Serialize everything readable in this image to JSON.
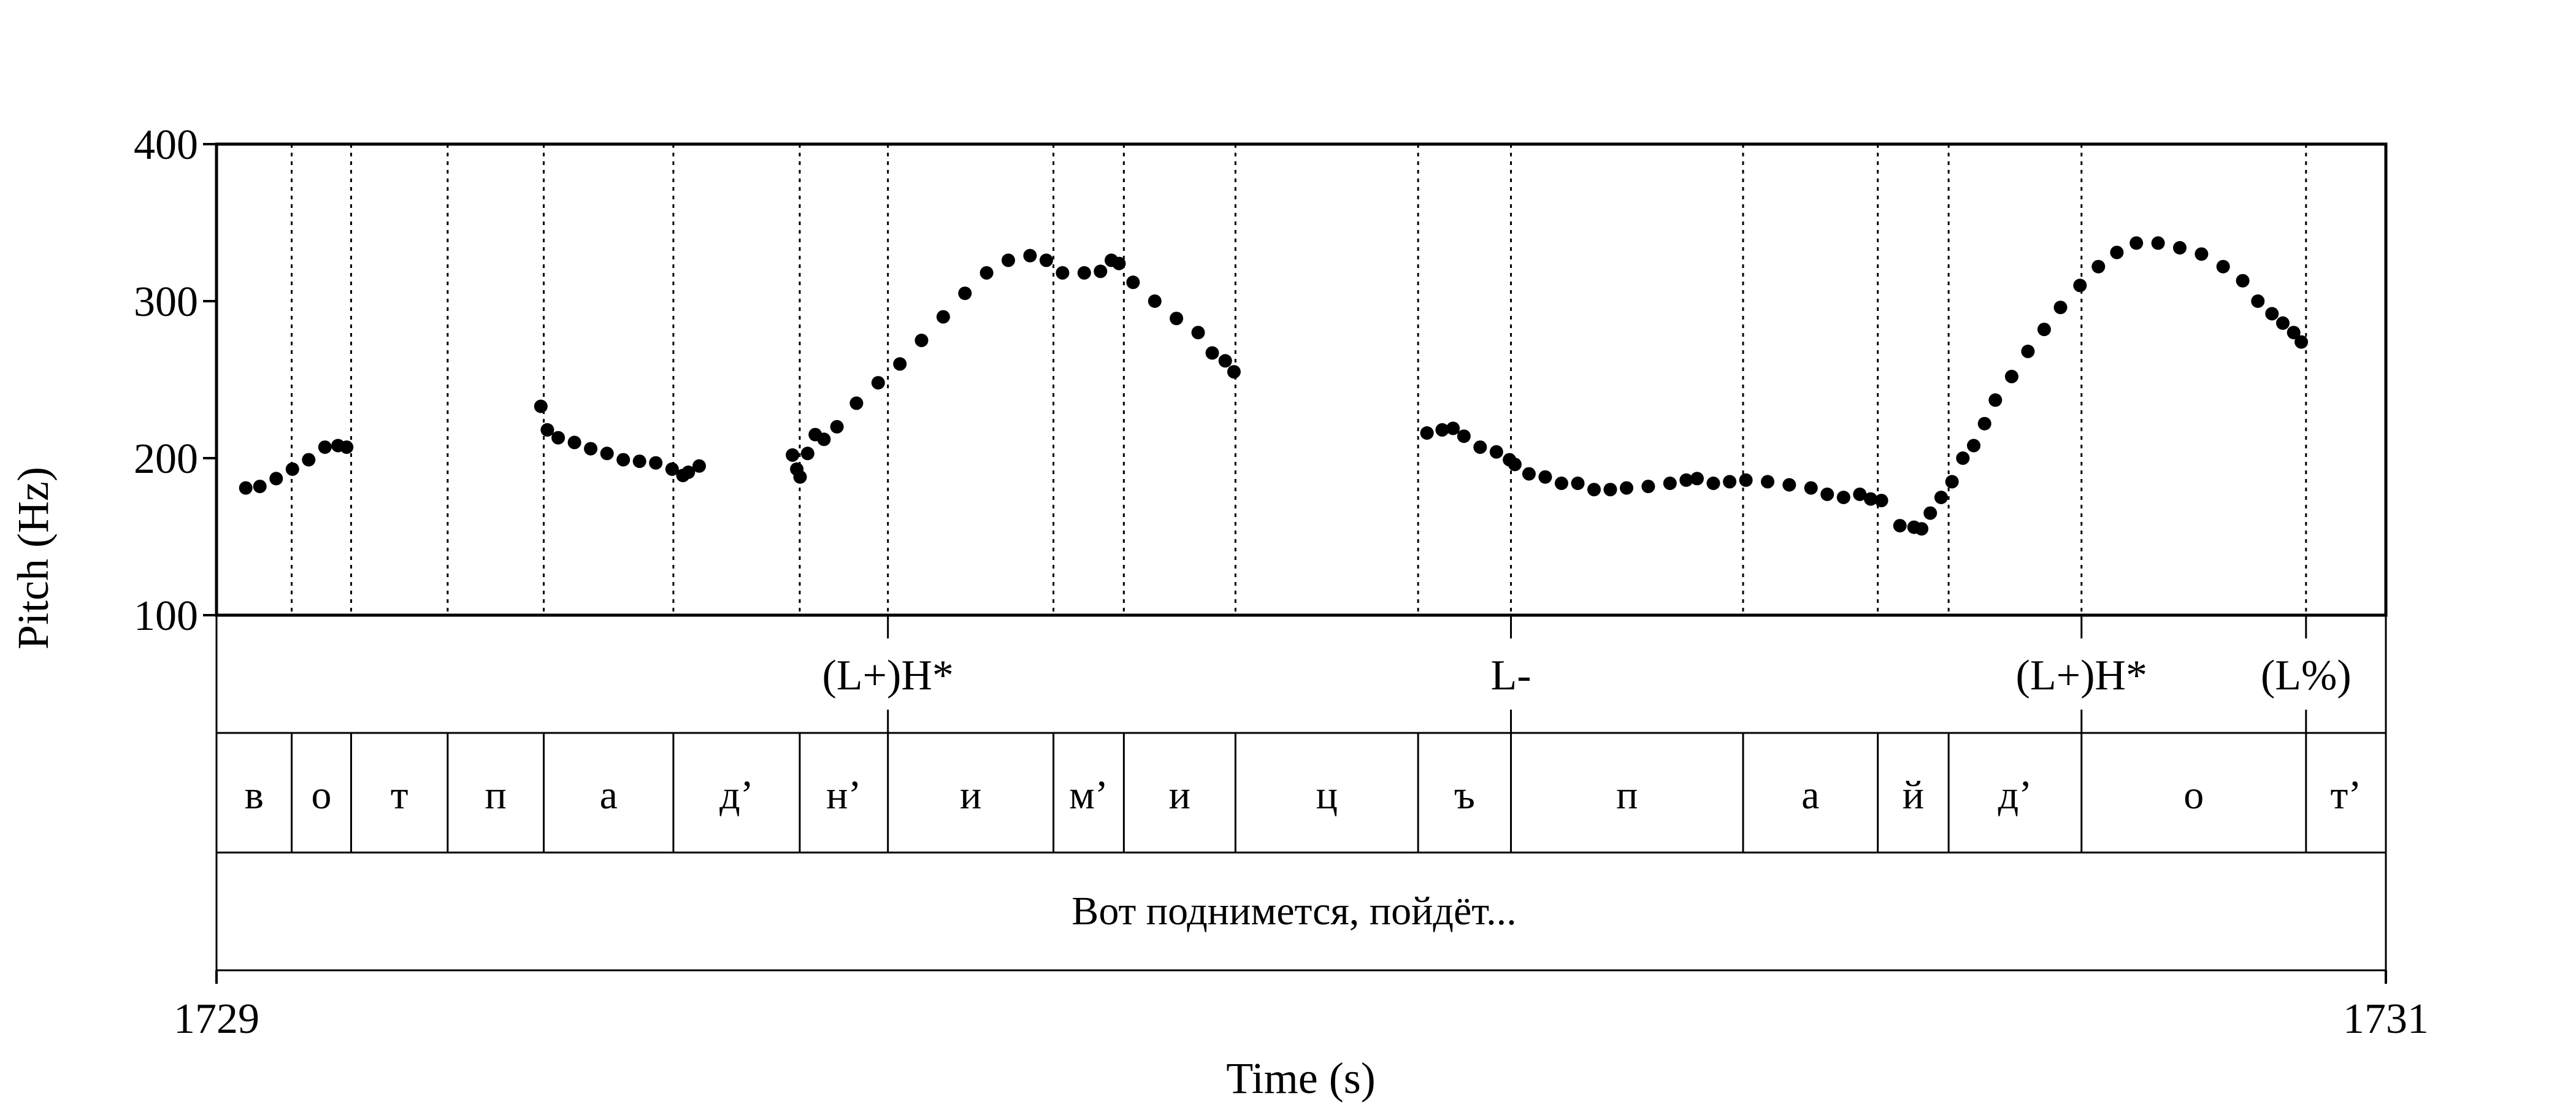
{
  "chart_data": {
    "type": "scatter",
    "title": "",
    "xlabel": "Time (s)",
    "ylabel": "Pitch (Hz)",
    "xlim": [
      1729,
      1731
    ],
    "ylim": [
      100,
      400
    ],
    "x_tick_labels": [
      "1729",
      "1731"
    ],
    "y_tick_labels": [
      "100",
      "200",
      "300",
      "400"
    ],
    "grid": false,
    "legend": "none",
    "point_color": "#000000",
    "boundaries": [
      1729.0693,
      1729.1241,
      1729.2131,
      1729.3017,
      1729.4212,
      1729.5377,
      1729.619,
      1729.7716,
      1729.8365,
      1729.9394,
      1730.1078,
      1730.1934,
      1730.4074,
      1730.5316,
      1730.5969,
      1730.7194,
      1730.9264
    ],
    "tones": [
      {
        "label": "(L+)H*",
        "x": 1729.619
      },
      {
        "label": "L-",
        "x": 1730.1934
      },
      {
        "label": "(L+)H*",
        "x": 1730.7194
      },
      {
        "label": "(L%)",
        "x": 1730.9264
      }
    ],
    "segments": [
      {
        "label": "в",
        "start": 1729.0,
        "end": 1729.0693
      },
      {
        "label": "о",
        "start": 1729.0693,
        "end": 1729.1241
      },
      {
        "label": "т",
        "start": 1729.1241,
        "end": 1729.2131
      },
      {
        "label": "п",
        "start": 1729.2131,
        "end": 1729.3017
      },
      {
        "label": "а",
        "start": 1729.3017,
        "end": 1729.4212
      },
      {
        "label": "д’",
        "start": 1729.4212,
        "end": 1729.5377
      },
      {
        "label": "н’",
        "start": 1729.5377,
        "end": 1729.619
      },
      {
        "label": "и",
        "start": 1729.619,
        "end": 1729.7716
      },
      {
        "label": "м’",
        "start": 1729.7716,
        "end": 1729.8365
      },
      {
        "label": "и",
        "start": 1729.8365,
        "end": 1729.9394
      },
      {
        "label": "ц",
        "start": 1729.9394,
        "end": 1730.1078
      },
      {
        "label": "ъ",
        "start": 1730.1078,
        "end": 1730.1934
      },
      {
        "label": "п",
        "start": 1730.1934,
        "end": 1730.4074
      },
      {
        "label": "а",
        "start": 1730.4074,
        "end": 1730.5316
      },
      {
        "label": "й",
        "start": 1730.5316,
        "end": 1730.5969
      },
      {
        "label": "д’",
        "start": 1730.5969,
        "end": 1730.7194
      },
      {
        "label": "о",
        "start": 1730.7194,
        "end": 1730.9264
      },
      {
        "label": "т’",
        "start": 1730.9264,
        "end": 1731.0
      }
    ],
    "sentence": "Вот поднимется, пойдёт...",
    "series": [
      {
        "points": [
          [
            1729.027,
            181
          ],
          [
            1729.04,
            182
          ],
          [
            1729.055,
            187
          ],
          [
            1729.07,
            193
          ],
          [
            1729.085,
            199
          ],
          [
            1729.1,
            207
          ],
          [
            1729.112,
            208
          ],
          [
            1729.12,
            207
          ],
          [
            1729.299,
            233
          ],
          [
            1729.305,
            218
          ],
          [
            1729.315,
            213
          ],
          [
            1729.33,
            210
          ],
          [
            1729.345,
            206
          ],
          [
            1729.36,
            203
          ],
          [
            1729.375,
            199
          ],
          [
            1729.39,
            198
          ],
          [
            1729.405,
            197
          ],
          [
            1729.42,
            193
          ],
          [
            1729.43,
            189
          ],
          [
            1729.435,
            191
          ],
          [
            1729.445,
            195
          ],
          [
            1729.531,
            202
          ],
          [
            1729.535,
            193
          ],
          [
            1729.538,
            188
          ],
          [
            1729.545,
            203
          ],
          [
            1729.552,
            215
          ],
          [
            1729.56,
            212
          ],
          [
            1729.572,
            220
          ],
          [
            1729.59,
            235
          ],
          [
            1729.61,
            248
          ],
          [
            1729.63,
            260
          ],
          [
            1729.65,
            275
          ],
          [
            1729.67,
            290
          ],
          [
            1729.69,
            305
          ],
          [
            1729.71,
            318
          ],
          [
            1729.73,
            326
          ],
          [
            1729.75,
            329
          ],
          [
            1729.765,
            326
          ],
          [
            1729.78,
            318
          ],
          [
            1729.8,
            318
          ],
          [
            1729.815,
            319
          ],
          [
            1729.825,
            326
          ],
          [
            1729.832,
            324
          ],
          [
            1729.845,
            312
          ],
          [
            1729.865,
            300
          ],
          [
            1729.885,
            289
          ],
          [
            1729.905,
            280
          ],
          [
            1729.918,
            267
          ],
          [
            1729.93,
            262
          ],
          [
            1729.938,
            255
          ],
          [
            1730.116,
            216
          ],
          [
            1730.13,
            218
          ],
          [
            1730.14,
            219
          ],
          [
            1730.15,
            214
          ],
          [
            1730.165,
            207
          ],
          [
            1730.18,
            204
          ],
          [
            1730.192,
            199
          ],
          [
            1730.197,
            196
          ],
          [
            1730.21,
            190
          ],
          [
            1730.225,
            188
          ],
          [
            1730.24,
            184
          ],
          [
            1730.255,
            184
          ],
          [
            1730.27,
            180
          ],
          [
            1730.285,
            180
          ],
          [
            1730.3,
            181
          ],
          [
            1730.32,
            182
          ],
          [
            1730.34,
            184
          ],
          [
            1730.355,
            186
          ],
          [
            1730.365,
            187
          ],
          [
            1730.38,
            184
          ],
          [
            1730.395,
            185
          ],
          [
            1730.41,
            186
          ],
          [
            1730.43,
            185
          ],
          [
            1730.45,
            183
          ],
          [
            1730.47,
            181
          ],
          [
            1730.485,
            177
          ],
          [
            1730.5,
            175
          ],
          [
            1730.515,
            177
          ],
          [
            1730.525,
            174
          ],
          [
            1730.535,
            173
          ],
          [
            1730.552,
            157
          ],
          [
            1730.565,
            156
          ],
          [
            1730.572,
            155
          ],
          [
            1730.58,
            165
          ],
          [
            1730.59,
            175
          ],
          [
            1730.6,
            185
          ],
          [
            1730.61,
            200
          ],
          [
            1730.62,
            208
          ],
          [
            1730.63,
            222
          ],
          [
            1730.64,
            237
          ],
          [
            1730.655,
            252
          ],
          [
            1730.67,
            268
          ],
          [
            1730.685,
            282
          ],
          [
            1730.7,
            296
          ],
          [
            1730.718,
            310
          ],
          [
            1730.735,
            322
          ],
          [
            1730.752,
            331
          ],
          [
            1730.77,
            337
          ],
          [
            1730.79,
            337
          ],
          [
            1730.81,
            334
          ],
          [
            1730.83,
            330
          ],
          [
            1730.85,
            322
          ],
          [
            1730.868,
            313
          ],
          [
            1730.882,
            300
          ],
          [
            1730.895,
            292
          ],
          [
            1730.905,
            286
          ],
          [
            1730.915,
            280
          ],
          [
            1730.922,
            274
          ]
        ]
      }
    ]
  }
}
